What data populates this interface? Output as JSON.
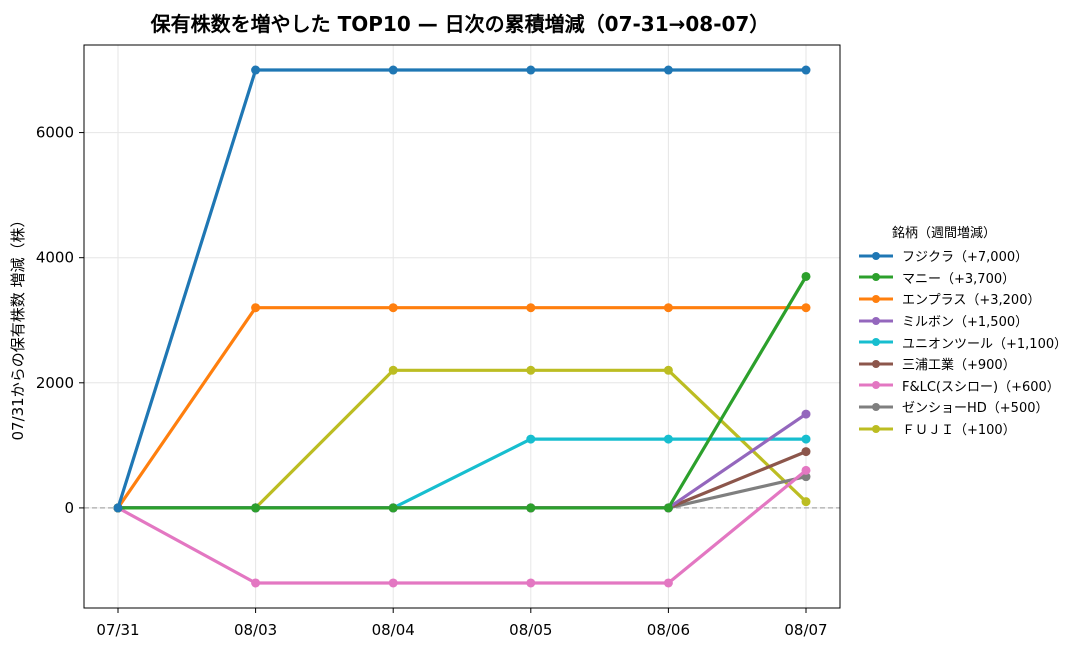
{
  "chart_data": {
    "type": "line",
    "title": "保有株数を増やした TOP10 — 日次の累積増減（07-31→08-07）",
    "xlabel": "",
    "ylabel": "07/31からの保有株数 増減（株）",
    "categories": [
      "07/31",
      "08/03",
      "08/04",
      "08/05",
      "08/06",
      "08/07"
    ],
    "ylim": [
      -1600,
      7400
    ],
    "yticks": [
      0,
      2000,
      4000,
      6000
    ],
    "grid": true,
    "zero_line": "dashed",
    "legend_title": "銘柄（週間増減）",
    "legend_placement": "right",
    "series": [
      {
        "name": "フジクラ（+7,000）",
        "color": "#1f77b4",
        "values": [
          0,
          7000,
          7000,
          7000,
          7000,
          7000
        ]
      },
      {
        "name": "マニー（+3,700）",
        "color": "#2ca02c",
        "values": [
          0,
          0,
          0,
          0,
          0,
          3700
        ]
      },
      {
        "name": "エンプラス（+3,200）",
        "color": "#ff7f0e",
        "values": [
          0,
          3200,
          3200,
          3200,
          3200,
          3200
        ]
      },
      {
        "name": "ミルボン（+1,500）",
        "color": "#9467bd",
        "values": [
          0,
          0,
          0,
          0,
          0,
          1500
        ]
      },
      {
        "name": "ユニオンツール（+1,100）",
        "color": "#17becf",
        "values": [
          0,
          0,
          0,
          1100,
          1100,
          1100
        ]
      },
      {
        "name": "三浦工業（+900）",
        "color": "#8c564b",
        "values": [
          0,
          0,
          0,
          0,
          0,
          900
        ]
      },
      {
        "name": "F&LC(スシロー)（+600）",
        "color": "#e377c2",
        "values": [
          0,
          -1200,
          -1200,
          -1200,
          -1200,
          600
        ]
      },
      {
        "name": "ゼンショーHD（+500）",
        "color": "#7f7f7f",
        "values": [
          0,
          0,
          0,
          0,
          0,
          500
        ]
      },
      {
        "name": "ＦＵＪＩ（+100）",
        "color": "#bcbd22",
        "values": [
          0,
          0,
          2200,
          2200,
          2200,
          100
        ]
      }
    ]
  }
}
